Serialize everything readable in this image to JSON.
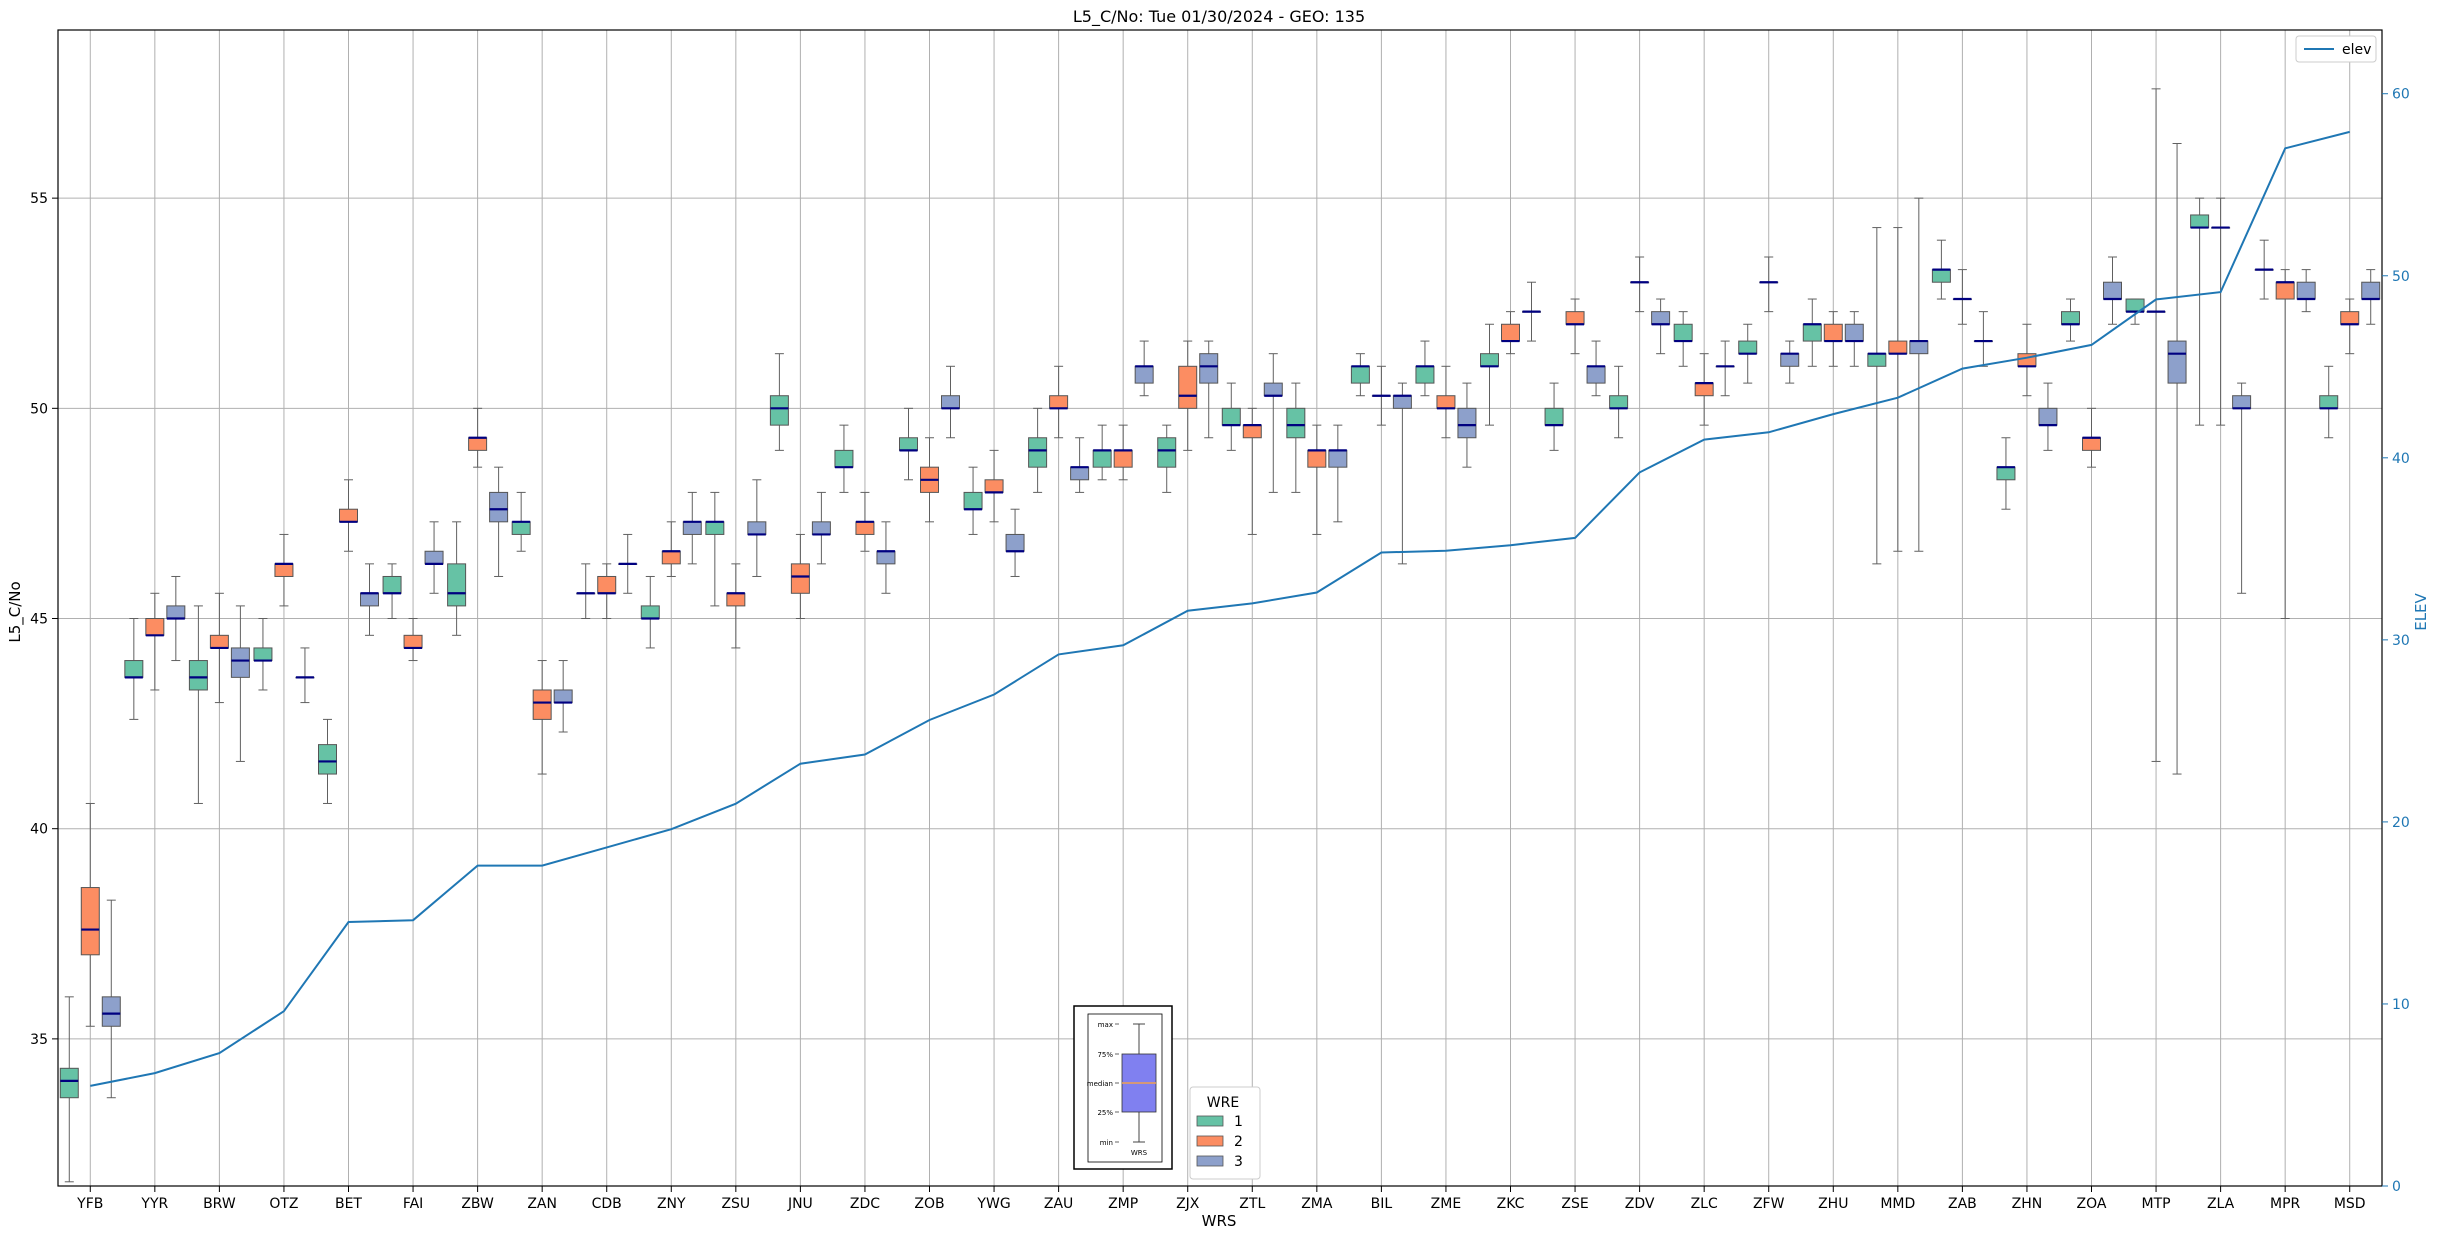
{
  "chart_data": {
    "type": "box",
    "title": "L5_C/No: Tue 01/30/2024 - GEO: 135",
    "xlabel": "WRS",
    "ylabel": "L5_C/No",
    "y2label": "ELEV",
    "ylim": [
      31.5,
      59.0
    ],
    "y2lim": [
      0,
      63.5
    ],
    "yticks": [
      35,
      40,
      45,
      50,
      55
    ],
    "y2ticks": [
      0,
      10,
      20,
      30,
      40,
      50,
      60
    ],
    "grid": true,
    "categories": [
      "YFB",
      "YYR",
      "BRW",
      "OTZ",
      "BET",
      "FAI",
      "ZBW",
      "ZAN",
      "CDB",
      "ZNY",
      "ZSU",
      "JNU",
      "ZDC",
      "ZOB",
      "YWG",
      "ZAU",
      "ZMP",
      "ZJX",
      "ZTL",
      "ZMA",
      "BIL",
      "ZME",
      "ZKC",
      "ZSE",
      "ZDV",
      "ZLC",
      "ZFW",
      "ZHU",
      "MMD",
      "ZAB",
      "ZHN",
      "ZOA",
      "MTP",
      "ZLA",
      "MPR",
      "MSD"
    ],
    "box_legend": {
      "title": "WRE",
      "entries": [
        {
          "label": "1",
          "color": "#66c2a5"
        },
        {
          "label": "2",
          "color": "#fc8d62"
        },
        {
          "label": "3",
          "color": "#8da0cb"
        }
      ]
    },
    "line_series": {
      "name": "elev",
      "color": "#1f77b4",
      "values": [
        5.5,
        6.2,
        7.3,
        9.6,
        14.5,
        14.6,
        17.6,
        17.6,
        18.6,
        19.6,
        21.0,
        23.2,
        23.7,
        25.6,
        27.0,
        29.2,
        29.7,
        31.6,
        32.0,
        32.6,
        34.8,
        34.9,
        35.2,
        35.6,
        39.2,
        41.0,
        41.4,
        42.4,
        43.3,
        44.9,
        45.5,
        46.2,
        48.7,
        49.1,
        57.0,
        57.9
      ]
    },
    "box_series": [
      {
        "wrs": "YFB",
        "wre": 1,
        "min": 31.6,
        "q1": 33.6,
        "median": 34.0,
        "q3": 34.3,
        "max": 36.0
      },
      {
        "wrs": "YFB",
        "wre": 2,
        "min": 35.3,
        "q1": 37.0,
        "median": 37.6,
        "q3": 38.6,
        "max": 40.6
      },
      {
        "wrs": "YFB",
        "wre": 3,
        "min": 33.6,
        "q1": 35.3,
        "median": 35.6,
        "q3": 36.0,
        "max": 38.3
      },
      {
        "wrs": "YYR",
        "wre": 1,
        "min": 42.6,
        "q1": 43.6,
        "median": 43.6,
        "q3": 44.0,
        "max": 45.0
      },
      {
        "wrs": "YYR",
        "wre": 2,
        "min": 43.3,
        "q1": 44.6,
        "median": 44.6,
        "q3": 45.0,
        "max": 45.6
      },
      {
        "wrs": "YYR",
        "wre": 3,
        "min": 44.0,
        "q1": 45.0,
        "median": 45.0,
        "q3": 45.3,
        "max": 46.0
      },
      {
        "wrs": "BRW",
        "wre": 1,
        "min": 40.6,
        "q1": 43.3,
        "median": 43.6,
        "q3": 44.0,
        "max": 45.3
      },
      {
        "wrs": "BRW",
        "wre": 2,
        "min": 43.0,
        "q1": 44.3,
        "median": 44.3,
        "q3": 44.6,
        "max": 45.6
      },
      {
        "wrs": "BRW",
        "wre": 3,
        "min": 41.6,
        "q1": 43.6,
        "median": 44.0,
        "q3": 44.3,
        "max": 45.3
      },
      {
        "wrs": "OTZ",
        "wre": 1,
        "min": 43.3,
        "q1": 44.0,
        "median": 44.0,
        "q3": 44.3,
        "max": 45.0
      },
      {
        "wrs": "OTZ",
        "wre": 2,
        "min": 45.3,
        "q1": 46.0,
        "median": 46.3,
        "q3": 46.3,
        "max": 47.0
      },
      {
        "wrs": "OTZ",
        "wre": 3,
        "min": 43.0,
        "q1": 43.6,
        "median": 43.6,
        "q3": 43.6,
        "max": 44.3
      },
      {
        "wrs": "BET",
        "wre": 1,
        "min": 40.6,
        "q1": 41.3,
        "median": 41.6,
        "q3": 42.0,
        "max": 42.6
      },
      {
        "wrs": "BET",
        "wre": 2,
        "min": 46.6,
        "q1": 47.3,
        "median": 47.3,
        "q3": 47.6,
        "max": 48.3
      },
      {
        "wrs": "BET",
        "wre": 3,
        "min": 44.6,
        "q1": 45.3,
        "median": 45.6,
        "q3": 45.6,
        "max": 46.3
      },
      {
        "wrs": "FAI",
        "wre": 1,
        "min": 45.0,
        "q1": 45.6,
        "median": 45.6,
        "q3": 46.0,
        "max": 46.3
      },
      {
        "wrs": "FAI",
        "wre": 2,
        "min": 44.0,
        "q1": 44.3,
        "median": 44.3,
        "q3": 44.6,
        "max": 45.0
      },
      {
        "wrs": "FAI",
        "wre": 3,
        "min": 45.6,
        "q1": 46.3,
        "median": 46.3,
        "q3": 46.6,
        "max": 47.3
      },
      {
        "wrs": "ZBW",
        "wre": 1,
        "min": 44.6,
        "q1": 45.3,
        "median": 45.6,
        "q3": 46.3,
        "max": 47.3
      },
      {
        "wrs": "ZBW",
        "wre": 2,
        "min": 48.6,
        "q1": 49.0,
        "median": 49.3,
        "q3": 49.3,
        "max": 50.0
      },
      {
        "wrs": "ZBW",
        "wre": 3,
        "min": 46.0,
        "q1": 47.3,
        "median": 47.6,
        "q3": 48.0,
        "max": 48.6
      },
      {
        "wrs": "ZAN",
        "wre": 1,
        "min": 46.6,
        "q1": 47.0,
        "median": 47.3,
        "q3": 47.3,
        "max": 48.0
      },
      {
        "wrs": "ZAN",
        "wre": 2,
        "min": 41.3,
        "q1": 42.6,
        "median": 43.0,
        "q3": 43.3,
        "max": 44.0
      },
      {
        "wrs": "ZAN",
        "wre": 3,
        "min": 42.3,
        "q1": 43.0,
        "median": 43.0,
        "q3": 43.3,
        "max": 44.0
      },
      {
        "wrs": "CDB",
        "wre": 1,
        "min": 45.0,
        "q1": 45.6,
        "median": 45.6,
        "q3": 45.6,
        "max": 46.3
      },
      {
        "wrs": "CDB",
        "wre": 2,
        "min": 45.0,
        "q1": 45.6,
        "median": 45.6,
        "q3": 46.0,
        "max": 46.3
      },
      {
        "wrs": "CDB",
        "wre": 3,
        "min": 45.6,
        "q1": 46.3,
        "median": 46.3,
        "q3": 46.3,
        "max": 47.0
      },
      {
        "wrs": "ZNY",
        "wre": 1,
        "min": 44.3,
        "q1": 45.0,
        "median": 45.0,
        "q3": 45.3,
        "max": 46.0
      },
      {
        "wrs": "ZNY",
        "wre": 2,
        "min": 46.0,
        "q1": 46.3,
        "median": 46.6,
        "q3": 46.6,
        "max": 47.3
      },
      {
        "wrs": "ZNY",
        "wre": 3,
        "min": 46.3,
        "q1": 47.0,
        "median": 47.3,
        "q3": 47.3,
        "max": 48.0
      },
      {
        "wrs": "ZSU",
        "wre": 1,
        "min": 45.3,
        "q1": 47.0,
        "median": 47.3,
        "q3": 47.3,
        "max": 48.0
      },
      {
        "wrs": "ZSU",
        "wre": 2,
        "min": 44.3,
        "q1": 45.3,
        "median": 45.6,
        "q3": 45.6,
        "max": 46.3
      },
      {
        "wrs": "ZSU",
        "wre": 3,
        "min": 46.0,
        "q1": 47.0,
        "median": 47.0,
        "q3": 47.3,
        "max": 48.3
      },
      {
        "wrs": "JNU",
        "wre": 1,
        "min": 49.0,
        "q1": 49.6,
        "median": 50.0,
        "q3": 50.3,
        "max": 51.3
      },
      {
        "wrs": "JNU",
        "wre": 2,
        "min": 45.0,
        "q1": 45.6,
        "median": 46.0,
        "q3": 46.3,
        "max": 47.0
      },
      {
        "wrs": "JNU",
        "wre": 3,
        "min": 46.3,
        "q1": 47.0,
        "median": 47.0,
        "q3": 47.3,
        "max": 48.0
      },
      {
        "wrs": "ZDC",
        "wre": 1,
        "min": 48.0,
        "q1": 48.6,
        "median": 48.6,
        "q3": 49.0,
        "max": 49.6
      },
      {
        "wrs": "ZDC",
        "wre": 2,
        "min": 46.6,
        "q1": 47.0,
        "median": 47.3,
        "q3": 47.3,
        "max": 48.0
      },
      {
        "wrs": "ZDC",
        "wre": 3,
        "min": 45.6,
        "q1": 46.3,
        "median": 46.6,
        "q3": 46.6,
        "max": 47.3
      },
      {
        "wrs": "ZOB",
        "wre": 1,
        "min": 48.3,
        "q1": 49.0,
        "median": 49.0,
        "q3": 49.3,
        "max": 50.0
      },
      {
        "wrs": "ZOB",
        "wre": 2,
        "min": 47.3,
        "q1": 48.0,
        "median": 48.3,
        "q3": 48.6,
        "max": 49.3
      },
      {
        "wrs": "ZOB",
        "wre": 3,
        "min": 49.3,
        "q1": 50.0,
        "median": 50.0,
        "q3": 50.3,
        "max": 51.0
      },
      {
        "wrs": "YWG",
        "wre": 1,
        "min": 47.0,
        "q1": 47.6,
        "median": 47.6,
        "q3": 48.0,
        "max": 48.6
      },
      {
        "wrs": "YWG",
        "wre": 2,
        "min": 47.3,
        "q1": 48.0,
        "median": 48.0,
        "q3": 48.3,
        "max": 49.0
      },
      {
        "wrs": "YWG",
        "wre": 3,
        "min": 46.0,
        "q1": 46.6,
        "median": 46.6,
        "q3": 47.0,
        "max": 47.6
      },
      {
        "wrs": "ZAU",
        "wre": 1,
        "min": 48.0,
        "q1": 48.6,
        "median": 49.0,
        "q3": 49.3,
        "max": 50.0
      },
      {
        "wrs": "ZAU",
        "wre": 2,
        "min": 49.3,
        "q1": 50.0,
        "median": 50.0,
        "q3": 50.3,
        "max": 51.0
      },
      {
        "wrs": "ZAU",
        "wre": 3,
        "min": 48.0,
        "q1": 48.3,
        "median": 48.6,
        "q3": 48.6,
        "max": 49.3
      },
      {
        "wrs": "ZMP",
        "wre": 1,
        "min": 48.3,
        "q1": 48.6,
        "median": 49.0,
        "q3": 49.0,
        "max": 49.6
      },
      {
        "wrs": "ZMP",
        "wre": 2,
        "min": 48.3,
        "q1": 48.6,
        "median": 49.0,
        "q3": 49.0,
        "max": 49.6
      },
      {
        "wrs": "ZMP",
        "wre": 3,
        "min": 50.3,
        "q1": 50.6,
        "median": 51.0,
        "q3": 51.0,
        "max": 51.6
      },
      {
        "wrs": "ZJX",
        "wre": 1,
        "min": 48.0,
        "q1": 48.6,
        "median": 49.0,
        "q3": 49.3,
        "max": 49.6
      },
      {
        "wrs": "ZJX",
        "wre": 2,
        "min": 49.0,
        "q1": 50.0,
        "median": 50.3,
        "q3": 51.0,
        "max": 51.6
      },
      {
        "wrs": "ZJX",
        "wre": 3,
        "min": 49.3,
        "q1": 50.6,
        "median": 51.0,
        "q3": 51.3,
        "max": 51.6
      },
      {
        "wrs": "ZTL",
        "wre": 1,
        "min": 49.0,
        "q1": 49.6,
        "median": 49.6,
        "q3": 50.0,
        "max": 50.6
      },
      {
        "wrs": "ZTL",
        "wre": 2,
        "min": 47.0,
        "q1": 49.3,
        "median": 49.6,
        "q3": 49.6,
        "max": 50.0
      },
      {
        "wrs": "ZTL",
        "wre": 3,
        "min": 48.0,
        "q1": 50.3,
        "median": 50.3,
        "q3": 50.6,
        "max": 51.3
      },
      {
        "wrs": "ZMA",
        "wre": 1,
        "min": 48.0,
        "q1": 49.3,
        "median": 49.6,
        "q3": 50.0,
        "max": 50.6
      },
      {
        "wrs": "ZMA",
        "wre": 2,
        "min": 47.0,
        "q1": 48.6,
        "median": 49.0,
        "q3": 49.0,
        "max": 49.6
      },
      {
        "wrs": "ZMA",
        "wre": 3,
        "min": 47.3,
        "q1": 48.6,
        "median": 49.0,
        "q3": 49.0,
        "max": 49.6
      },
      {
        "wrs": "BIL",
        "wre": 1,
        "min": 50.3,
        "q1": 50.6,
        "median": 51.0,
        "q3": 51.0,
        "max": 51.3
      },
      {
        "wrs": "BIL",
        "wre": 2,
        "min": 49.6,
        "q1": 50.3,
        "median": 50.3,
        "q3": 50.3,
        "max": 51.0
      },
      {
        "wrs": "BIL",
        "wre": 3,
        "min": 46.3,
        "q1": 50.0,
        "median": 50.3,
        "q3": 50.3,
        "max": 50.6
      },
      {
        "wrs": "ZME",
        "wre": 1,
        "min": 50.3,
        "q1": 50.6,
        "median": 51.0,
        "q3": 51.0,
        "max": 51.6
      },
      {
        "wrs": "ZME",
        "wre": 2,
        "min": 49.3,
        "q1": 50.0,
        "median": 50.0,
        "q3": 50.3,
        "max": 51.0
      },
      {
        "wrs": "ZME",
        "wre": 3,
        "min": 48.6,
        "q1": 49.3,
        "median": 49.6,
        "q3": 50.0,
        "max": 50.6
      },
      {
        "wrs": "ZKC",
        "wre": 1,
        "min": 49.6,
        "q1": 51.0,
        "median": 51.0,
        "q3": 51.3,
        "max": 52.0
      },
      {
        "wrs": "ZKC",
        "wre": 2,
        "min": 51.3,
        "q1": 51.6,
        "median": 51.6,
        "q3": 52.0,
        "max": 52.3
      },
      {
        "wrs": "ZKC",
        "wre": 3,
        "min": 51.6,
        "q1": 52.3,
        "median": 52.3,
        "q3": 52.3,
        "max": 53.0
      },
      {
        "wrs": "ZSE",
        "wre": 1,
        "min": 49.0,
        "q1": 49.6,
        "median": 49.6,
        "q3": 50.0,
        "max": 50.6
      },
      {
        "wrs": "ZSE",
        "wre": 2,
        "min": 51.3,
        "q1": 52.0,
        "median": 52.0,
        "q3": 52.3,
        "max": 52.6
      },
      {
        "wrs": "ZSE",
        "wre": 3,
        "min": 50.3,
        "q1": 50.6,
        "median": 51.0,
        "q3": 51.0,
        "max": 51.6
      },
      {
        "wrs": "ZDV",
        "wre": 1,
        "min": 49.3,
        "q1": 50.0,
        "median": 50.0,
        "q3": 50.3,
        "max": 51.0
      },
      {
        "wrs": "ZDV",
        "wre": 2,
        "min": 52.3,
        "q1": 53.0,
        "median": 53.0,
        "q3": 53.0,
        "max": 53.6
      },
      {
        "wrs": "ZDV",
        "wre": 3,
        "min": 51.3,
        "q1": 52.0,
        "median": 52.0,
        "q3": 52.3,
        "max": 52.6
      },
      {
        "wrs": "ZLC",
        "wre": 1,
        "min": 51.0,
        "q1": 51.6,
        "median": 51.6,
        "q3": 52.0,
        "max": 52.3
      },
      {
        "wrs": "ZLC",
        "wre": 2,
        "min": 49.6,
        "q1": 50.3,
        "median": 50.6,
        "q3": 50.6,
        "max": 51.3
      },
      {
        "wrs": "ZLC",
        "wre": 3,
        "min": 50.3,
        "q1": 51.0,
        "median": 51.0,
        "q3": 51.0,
        "max": 51.6
      },
      {
        "wrs": "ZFW",
        "wre": 1,
        "min": 50.6,
        "q1": 51.3,
        "median": 51.3,
        "q3": 51.6,
        "max": 52.0
      },
      {
        "wrs": "ZFW",
        "wre": 2,
        "min": 52.3,
        "q1": 53.0,
        "median": 53.0,
        "q3": 53.0,
        "max": 53.6
      },
      {
        "wrs": "ZFW",
        "wre": 3,
        "min": 50.6,
        "q1": 51.0,
        "median": 51.3,
        "q3": 51.3,
        "max": 51.6
      },
      {
        "wrs": "ZHU",
        "wre": 1,
        "min": 51.0,
        "q1": 51.6,
        "median": 52.0,
        "q3": 52.0,
        "max": 52.6
      },
      {
        "wrs": "ZHU",
        "wre": 2,
        "min": 51.0,
        "q1": 51.6,
        "median": 51.6,
        "q3": 52.0,
        "max": 52.3
      },
      {
        "wrs": "ZHU",
        "wre": 3,
        "min": 51.0,
        "q1": 51.6,
        "median": 51.6,
        "q3": 52.0,
        "max": 52.3
      },
      {
        "wrs": "MMD",
        "wre": 1,
        "min": 46.3,
        "q1": 51.0,
        "median": 51.3,
        "q3": 51.3,
        "max": 54.3
      },
      {
        "wrs": "MMD",
        "wre": 2,
        "min": 46.6,
        "q1": 51.3,
        "median": 51.3,
        "q3": 51.6,
        "max": 54.3
      },
      {
        "wrs": "MMD",
        "wre": 3,
        "min": 46.6,
        "q1": 51.3,
        "median": 51.6,
        "q3": 51.6,
        "max": 55.0
      },
      {
        "wrs": "ZAB",
        "wre": 1,
        "min": 52.6,
        "q1": 53.0,
        "median": 53.3,
        "q3": 53.3,
        "max": 54.0
      },
      {
        "wrs": "ZAB",
        "wre": 2,
        "min": 52.0,
        "q1": 52.6,
        "median": 52.6,
        "q3": 52.6,
        "max": 53.3
      },
      {
        "wrs": "ZAB",
        "wre": 3,
        "min": 51.0,
        "q1": 51.6,
        "median": 51.6,
        "q3": 51.6,
        "max": 52.3
      },
      {
        "wrs": "ZHN",
        "wre": 1,
        "min": 47.6,
        "q1": 48.3,
        "median": 48.6,
        "q3": 48.6,
        "max": 49.3
      },
      {
        "wrs": "ZHN",
        "wre": 2,
        "min": 50.3,
        "q1": 51.0,
        "median": 51.0,
        "q3": 51.3,
        "max": 52.0
      },
      {
        "wrs": "ZHN",
        "wre": 3,
        "min": 49.0,
        "q1": 49.6,
        "median": 49.6,
        "q3": 50.0,
        "max": 50.6
      },
      {
        "wrs": "ZOA",
        "wre": 1,
        "min": 51.6,
        "q1": 52.0,
        "median": 52.0,
        "q3": 52.3,
        "max": 52.6
      },
      {
        "wrs": "ZOA",
        "wre": 2,
        "min": 48.6,
        "q1": 49.0,
        "median": 49.3,
        "q3": 49.3,
        "max": 50.0
      },
      {
        "wrs": "ZOA",
        "wre": 3,
        "min": 52.0,
        "q1": 52.6,
        "median": 52.6,
        "q3": 53.0,
        "max": 53.6
      },
      {
        "wrs": "MTP",
        "wre": 1,
        "min": 52.0,
        "q1": 52.3,
        "median": 52.3,
        "q3": 52.6,
        "max": 52.6
      },
      {
        "wrs": "MTP",
        "wre": 2,
        "min": 41.6,
        "q1": 52.3,
        "median": 52.3,
        "q3": 52.3,
        "max": 57.6
      },
      {
        "wrs": "MTP",
        "wre": 3,
        "min": 41.3,
        "q1": 50.6,
        "median": 51.3,
        "q3": 51.6,
        "max": 56.3
      },
      {
        "wrs": "ZLA",
        "wre": 1,
        "min": 49.6,
        "q1": 54.3,
        "median": 54.3,
        "q3": 54.6,
        "max": 55.0
      },
      {
        "wrs": "ZLA",
        "wre": 2,
        "min": 49.6,
        "q1": 54.3,
        "median": 54.3,
        "q3": 54.3,
        "max": 55.0
      },
      {
        "wrs": "ZLA",
        "wre": 3,
        "min": 45.6,
        "q1": 50.0,
        "median": 50.0,
        "q3": 50.3,
        "max": 50.6
      },
      {
        "wrs": "MPR",
        "wre": 1,
        "min": 52.6,
        "q1": 53.3,
        "median": 53.3,
        "q3": 53.3,
        "max": 54.0
      },
      {
        "wrs": "MPR",
        "wre": 2,
        "min": 45.0,
        "q1": 52.6,
        "median": 53.0,
        "q3": 53.0,
        "max": 53.3
      },
      {
        "wrs": "MPR",
        "wre": 3,
        "min": 52.3,
        "q1": 52.6,
        "median": 52.6,
        "q3": 53.0,
        "max": 53.3
      },
      {
        "wrs": "MSD",
        "wre": 1,
        "min": 49.3,
        "q1": 50.0,
        "median": 50.0,
        "q3": 50.3,
        "max": 51.0
      },
      {
        "wrs": "MSD",
        "wre": 2,
        "min": 51.3,
        "q1": 52.0,
        "median": 52.0,
        "q3": 52.3,
        "max": 52.6
      },
      {
        "wrs": "MSD",
        "wre": 3,
        "min": 52.0,
        "q1": 52.6,
        "median": 52.6,
        "q3": 53.0,
        "max": 53.3
      }
    ],
    "inset_legend": {
      "labels": [
        "max",
        "75%",
        "median",
        "25%",
        "min"
      ],
      "xlabel": "WRS",
      "box_color": "#8080f0",
      "median_color": "#f0a050"
    }
  }
}
